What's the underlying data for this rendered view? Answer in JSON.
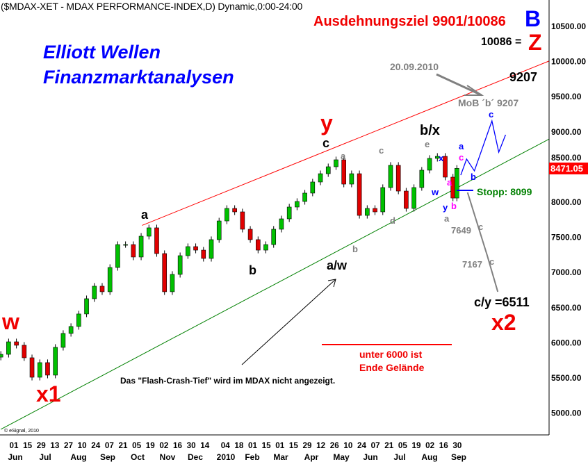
{
  "header": {
    "title": "($MDAX-XET - MDAX PERFORMANCE-INDEX,D) Dynamic,0:00-24:00"
  },
  "branding": {
    "line1": "Elliott Wellen",
    "line2": "Finanzmarktanalysen"
  },
  "copyright": "© eSignal, 2010",
  "annotations": {
    "target": "Ausdehnungsziel 9901/10086",
    "B": "B",
    "z_value": "10086 =",
    "Z": "Z",
    "date_note": "20.09.2010",
    "level_9207": "9207",
    "mob": "MoB ´b´ 9207",
    "y_big": "y",
    "c_top": "c",
    "a_gray1": "a",
    "c_gray1": "c",
    "bx": "b/x",
    "e_gray": "e",
    "x_blue": "x",
    "a_blue": "a",
    "c_mag": "c",
    "w_blue": "w",
    "a_mag": "a",
    "y_blue": "y",
    "b_mag": "b",
    "a_gray2": "a",
    "b_blue": "b",
    "c_blue_top": "c",
    "stopp": "Stopp: 8099",
    "v7649": "7649",
    "c_gray2": "c",
    "v7167": "7167",
    "c_gray3": "c",
    "cy": "c/y =6511",
    "x2": "x2",
    "a_black": "a",
    "b_black": "b",
    "aw": "a/w",
    "b_gray": "b",
    "d_gray": "d",
    "w_red": "w",
    "x1": "x1",
    "unter1": "unter 6000 ist",
    "unter2": "Ende Gelände",
    "flash": "Das \"Flash-Crash-Tief\" wird im MDAX nicht angezeigt."
  },
  "chart_data": {
    "type": "candlestick",
    "title": "($MDAX-XET - MDAX PERFORMANCE-INDEX,D) Dynamic,0:00-24:00",
    "last_price": "8471.05",
    "ylim": [
      4750,
      10750
    ],
    "y_ticks": [
      "10500.00",
      "10000.00",
      "9500.00",
      "9000.00",
      "8500.00",
      "8000.00",
      "7500.00",
      "7000.00",
      "6500.00",
      "6000.00",
      "5500.00",
      "5000.00"
    ],
    "x_day_ticks": [
      {
        "date": "2009-06-01",
        "label": "01"
      },
      {
        "date": "2009-06-15",
        "label": "15"
      },
      {
        "date": "2009-06-29",
        "label": "29"
      },
      {
        "date": "2009-07-13",
        "label": "13"
      },
      {
        "date": "2009-07-27",
        "label": "27"
      },
      {
        "date": "2009-08-10",
        "label": "10"
      },
      {
        "date": "2009-08-24",
        "label": "24"
      },
      {
        "date": "2009-09-07",
        "label": "07"
      },
      {
        "date": "2009-09-21",
        "label": "21"
      },
      {
        "date": "2009-10-05",
        "label": "05"
      },
      {
        "date": "2009-10-19",
        "label": "19"
      },
      {
        "date": "2009-11-02",
        "label": "02"
      },
      {
        "date": "2009-11-16",
        "label": "16"
      },
      {
        "date": "2009-11-30",
        "label": "30"
      },
      {
        "date": "2009-12-14",
        "label": "14"
      },
      {
        "date": "2010-01-04",
        "label": "04"
      },
      {
        "date": "2010-01-18",
        "label": "18"
      },
      {
        "date": "2010-02-01",
        "label": "01"
      },
      {
        "date": "2010-02-15",
        "label": "15"
      },
      {
        "date": "2010-03-01",
        "label": "01"
      },
      {
        "date": "2010-03-15",
        "label": "15"
      },
      {
        "date": "2010-03-29",
        "label": "29"
      },
      {
        "date": "2010-04-12",
        "label": "12"
      },
      {
        "date": "2010-04-26",
        "label": "26"
      },
      {
        "date": "2010-05-10",
        "label": "10"
      },
      {
        "date": "2010-05-24",
        "label": "24"
      },
      {
        "date": "2010-06-07",
        "label": "07"
      },
      {
        "date": "2010-06-21",
        "label": "21"
      },
      {
        "date": "2010-07-05",
        "label": "05"
      },
      {
        "date": "2010-07-19",
        "label": "19"
      },
      {
        "date": "2010-08-02",
        "label": "02"
      },
      {
        "date": "2010-08-16",
        "label": "16"
      },
      {
        "date": "2010-08-30",
        "label": "30"
      }
    ],
    "x_month_labels": [
      "Jun",
      "Jul",
      "Aug",
      "Sep",
      "Oct",
      "Nov",
      "Dec",
      "2010",
      "Feb",
      "Mar",
      "Apr",
      "May",
      "Jun",
      "Jul",
      "Aug",
      "Sep"
    ],
    "series": [
      {
        "date": "2009-05-20",
        "close": 5826
      },
      {
        "date": "2009-05-28",
        "close": 6004
      },
      {
        "date": "2009-06-05",
        "close": 5955
      },
      {
        "date": "2009-06-13",
        "close": 5777
      },
      {
        "date": "2009-06-21",
        "close": 5500
      },
      {
        "date": "2009-06-29",
        "close": 5708
      },
      {
        "date": "2009-07-07",
        "close": 5530
      },
      {
        "date": "2009-07-15",
        "close": 5925
      },
      {
        "date": "2009-07-23",
        "close": 6123
      },
      {
        "date": "2009-07-31",
        "close": 6222
      },
      {
        "date": "2009-08-08",
        "close": 6400
      },
      {
        "date": "2009-08-16",
        "close": 6617
      },
      {
        "date": "2009-08-24",
        "close": 6795
      },
      {
        "date": "2009-09-01",
        "close": 6716
      },
      {
        "date": "2009-09-09",
        "close": 7061
      },
      {
        "date": "2009-09-17",
        "close": 7387
      },
      {
        "date": "2009-09-25",
        "close": 7387
      },
      {
        "date": "2009-10-03",
        "close": 7210
      },
      {
        "date": "2009-10-11",
        "close": 7506
      },
      {
        "date": "2009-10-19",
        "close": 7625
      },
      {
        "date": "2009-10-27",
        "close": 7259
      },
      {
        "date": "2009-11-04",
        "close": 6716
      },
      {
        "date": "2009-11-12",
        "close": 6963
      },
      {
        "date": "2009-11-20",
        "close": 7229
      },
      {
        "date": "2009-11-28",
        "close": 7358
      },
      {
        "date": "2009-12-06",
        "close": 7308
      },
      {
        "date": "2009-12-14",
        "close": 7190
      },
      {
        "date": "2009-12-22",
        "close": 7457
      },
      {
        "date": "2009-12-30",
        "close": 7723
      },
      {
        "date": "2010-01-07",
        "close": 7901
      },
      {
        "date": "2010-01-15",
        "close": 7852
      },
      {
        "date": "2010-01-23",
        "close": 7605
      },
      {
        "date": "2010-01-31",
        "close": 7457
      },
      {
        "date": "2010-02-08",
        "close": 7308
      },
      {
        "date": "2010-02-16",
        "close": 7387
      },
      {
        "date": "2010-02-24",
        "close": 7605
      },
      {
        "date": "2010-03-04",
        "close": 7753
      },
      {
        "date": "2010-03-12",
        "close": 7921
      },
      {
        "date": "2010-03-20",
        "close": 8000
      },
      {
        "date": "2010-03-28",
        "close": 8119
      },
      {
        "date": "2010-04-05",
        "close": 8277
      },
      {
        "date": "2010-04-13",
        "close": 8395
      },
      {
        "date": "2010-04-21",
        "close": 8494
      },
      {
        "date": "2010-04-29",
        "close": 8593
      },
      {
        "date": "2010-05-07",
        "close": 8247
      },
      {
        "date": "2010-05-15",
        "close": 8395
      },
      {
        "date": "2010-05-23",
        "close": 7802
      },
      {
        "date": "2010-05-31",
        "close": 7901
      },
      {
        "date": "2010-06-08",
        "close": 7852
      },
      {
        "date": "2010-06-16",
        "close": 8198
      },
      {
        "date": "2010-06-24",
        "close": 8514
      },
      {
        "date": "2010-07-02",
        "close": 8148
      },
      {
        "date": "2010-07-10",
        "close": 7901
      },
      {
        "date": "2010-07-18",
        "close": 8198
      },
      {
        "date": "2010-07-26",
        "close": 8445
      },
      {
        "date": "2010-08-03",
        "close": 8613
      },
      {
        "date": "2010-08-11",
        "close": 8642
      },
      {
        "date": "2010-08-19",
        "close": 8346
      },
      {
        "date": "2010-08-27",
        "close": 8049
      },
      {
        "date": "2010-08-31",
        "close": 8471
      }
    ],
    "trendlines": [
      {
        "color": "#ff0000",
        "from": {
          "date": "2009-10-12",
          "value": 7660
        },
        "to": {
          "date": "2010-12-04",
          "value": 10000
        }
      },
      {
        "color": "#008000",
        "from": {
          "date": "2009-05-20",
          "value": 4760
        },
        "to": {
          "date": "2010-12-04",
          "value": 8890
        }
      }
    ],
    "projection_bullish": {
      "color": "#0000ff",
      "points": [
        {
          "date": "2010-09-04",
          "value": 8375
        },
        {
          "date": "2010-09-10",
          "value": 8603
        },
        {
          "date": "2010-09-18",
          "value": 8435
        },
        {
          "date": "2010-10-06",
          "value": 9146
        },
        {
          "date": "2010-10-13",
          "value": 8701
        },
        {
          "date": "2010-10-20",
          "value": 8949
        }
      ]
    },
    "projection_bearish": {
      "color": "#808080",
      "points": [
        {
          "date": "2010-09-11",
          "value": 8128
        },
        {
          "date": "2010-10-01",
          "value": 7239
        },
        {
          "date": "2010-10-12",
          "value": 6716
        }
      ]
    },
    "stop_level": {
      "value": 8099,
      "color": "#0000ff"
    },
    "colors": {
      "up": "#00c000",
      "down": "#e00000",
      "axis": "#000000"
    }
  }
}
